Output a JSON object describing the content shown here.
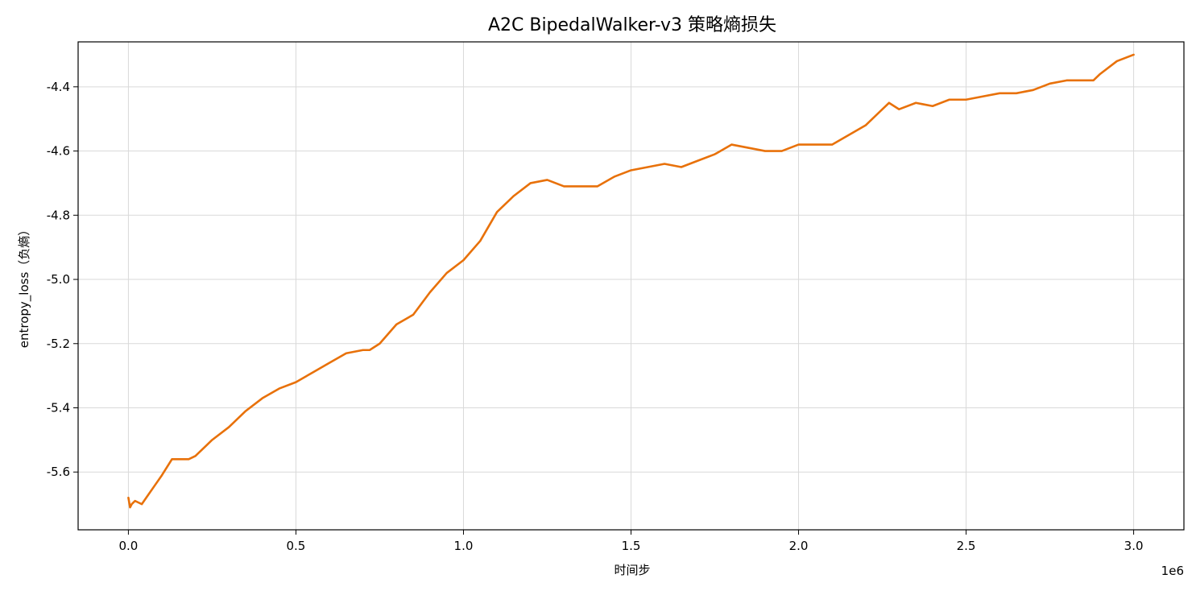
{
  "chart_data": {
    "type": "line",
    "title": "A2C BipedalWalker-v3 策略熵损失",
    "xlabel": "时间步",
    "ylabel": "entropy_loss（负熵）",
    "x_offset_label": "1e6",
    "x_scale": 1000000,
    "xlim": [
      -0.15,
      3.15
    ],
    "ylim": [
      -5.78,
      -4.26
    ],
    "x_ticks": [
      0.0,
      0.5,
      1.0,
      1.5,
      2.0,
      2.5,
      3.0
    ],
    "x_tick_labels": [
      "0.0",
      "0.5",
      "1.0",
      "1.5",
      "2.0",
      "2.5",
      "3.0"
    ],
    "y_ticks": [
      -4.4,
      -4.6,
      -4.8,
      -5.0,
      -5.2,
      -5.4,
      -5.6
    ],
    "y_tick_labels": [
      "-4.4",
      "-4.6",
      "-4.8",
      "-5.0",
      "-5.2",
      "-5.4",
      "-5.6"
    ],
    "grid": true,
    "line_color": "#E8710A",
    "series": [
      {
        "x": [
          0.0,
          0.005,
          0.01,
          0.02,
          0.04,
          0.06,
          0.08,
          0.1,
          0.13,
          0.15,
          0.18,
          0.2,
          0.25,
          0.3,
          0.35,
          0.4,
          0.45,
          0.5,
          0.55,
          0.6,
          0.65,
          0.7,
          0.72,
          0.75,
          0.8,
          0.85,
          0.9,
          0.95,
          1.0,
          1.05,
          1.1,
          1.15,
          1.2,
          1.25,
          1.3,
          1.35,
          1.4,
          1.45,
          1.5,
          1.55,
          1.6,
          1.65,
          1.7,
          1.75,
          1.8,
          1.85,
          1.9,
          1.95,
          2.0,
          2.05,
          2.1,
          2.15,
          2.2,
          2.25,
          2.27,
          2.3,
          2.35,
          2.4,
          2.45,
          2.5,
          2.55,
          2.6,
          2.65,
          2.7,
          2.75,
          2.8,
          2.85,
          2.88,
          2.9,
          2.95,
          3.0
        ],
        "y": [
          -5.68,
          -5.71,
          -5.7,
          -5.69,
          -5.7,
          -5.67,
          -5.64,
          -5.61,
          -5.56,
          -5.56,
          -5.56,
          -5.55,
          -5.5,
          -5.46,
          -5.41,
          -5.37,
          -5.34,
          -5.32,
          -5.29,
          -5.26,
          -5.23,
          -5.22,
          -5.22,
          -5.2,
          -5.14,
          -5.11,
          -5.04,
          -4.98,
          -4.94,
          -4.88,
          -4.79,
          -4.74,
          -4.7,
          -4.69,
          -4.71,
          -4.71,
          -4.71,
          -4.68,
          -4.66,
          -4.65,
          -4.64,
          -4.65,
          -4.63,
          -4.61,
          -4.58,
          -4.59,
          -4.6,
          -4.6,
          -4.58,
          -4.58,
          -4.58,
          -4.55,
          -4.52,
          -4.47,
          -4.45,
          -4.47,
          -4.45,
          -4.46,
          -4.44,
          -4.44,
          -4.43,
          -4.42,
          -4.42,
          -4.41,
          -4.39,
          -4.38,
          -4.38,
          -4.38,
          -4.36,
          -4.32,
          -4.3
        ]
      }
    ]
  }
}
